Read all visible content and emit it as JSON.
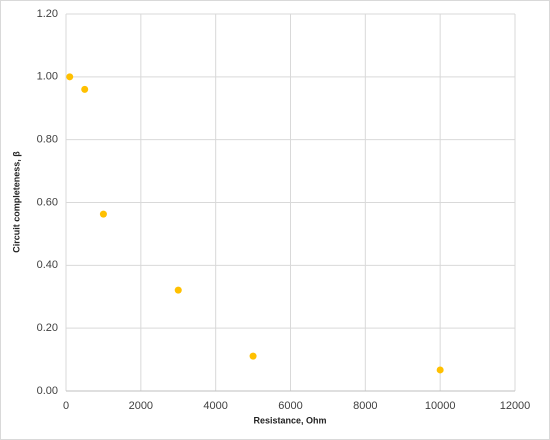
{
  "chart_data": {
    "type": "scatter",
    "x_label": "Resistance, Ohm",
    "y_label": "Circuit completeness, β",
    "series": [
      {
        "color": "#ffc000",
        "x": [
          100,
          500,
          1000,
          3000,
          5000,
          10000
        ],
        "values": [
          1.0,
          0.96,
          0.563,
          0.321,
          0.111,
          0.067
        ]
      }
    ],
    "xlim": [
      0,
      12000
    ],
    "xticks": [
      0,
      2000,
      4000,
      6000,
      8000,
      10000,
      12000
    ],
    "ylim": [
      0,
      1.2
    ],
    "yticks": [
      {
        "value": 0,
        "label": "0.00"
      },
      {
        "value": 0.2,
        "label": "0.20"
      },
      {
        "value": 0.4,
        "label": "0.40"
      },
      {
        "value": 0.6,
        "label": "0.60"
      },
      {
        "value": 0.8,
        "label": "0.80"
      },
      {
        "value": 1.0,
        "label": "1.00"
      },
      {
        "value": 1.2,
        "label": "1.20"
      }
    ],
    "grid": true
  }
}
